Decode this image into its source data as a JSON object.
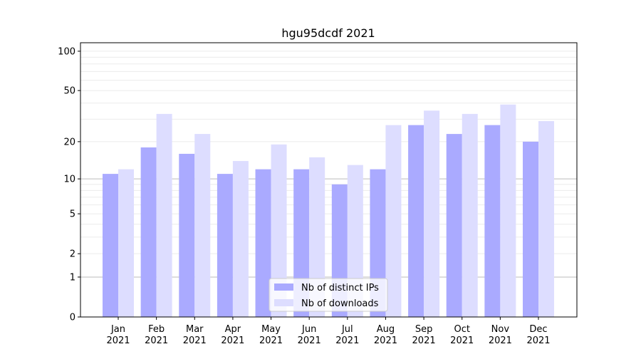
{
  "chart_data": {
    "type": "bar",
    "title": "hgu95dcdf 2021",
    "xlabel": "",
    "ylabel": "",
    "yscale": "log10(1+y)",
    "ylim": [
      0,
      116
    ],
    "yticks": [
      0,
      1,
      2,
      5,
      10,
      20,
      50,
      100
    ],
    "categories": [
      "Jan\n2021",
      "Feb\n2021",
      "Mar\n2021",
      "Apr\n2021",
      "May\n2021",
      "Jun\n2021",
      "Jul\n2021",
      "Aug\n2021",
      "Sep\n2021",
      "Oct\n2021",
      "Nov\n2021",
      "Dec\n2021"
    ],
    "series": [
      {
        "name": "Nb of distinct IPs",
        "color": "#aaaaff",
        "values": [
          11,
          18,
          16,
          11,
          12,
          12,
          9,
          12,
          27,
          23,
          27,
          20
        ]
      },
      {
        "name": "Nb of downloads",
        "color": "#ddddff",
        "values": [
          12,
          33,
          23,
          14,
          19,
          15,
          13,
          27,
          35,
          33,
          39,
          29
        ]
      }
    ],
    "legend": "lower-center",
    "grid": true
  }
}
